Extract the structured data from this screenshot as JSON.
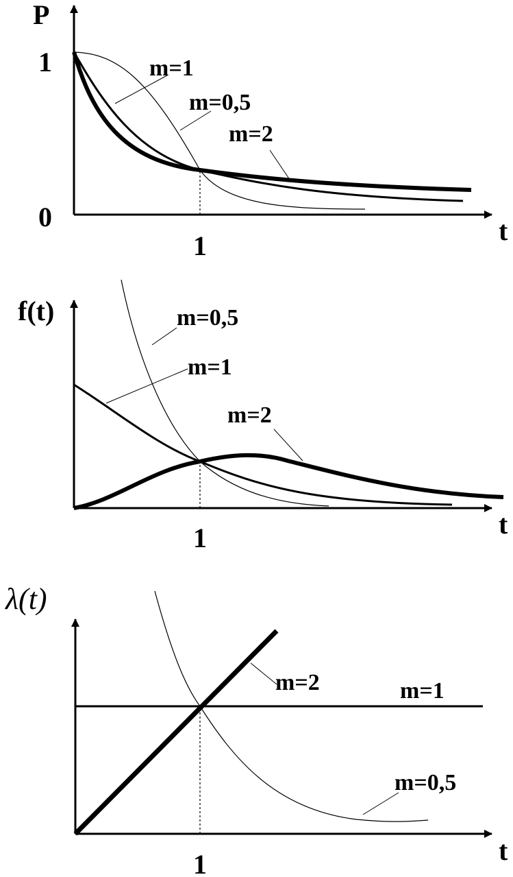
{
  "chart_data": [
    {
      "type": "line",
      "title": "",
      "ylabel": "P",
      "xlabel": "t",
      "xlim": [
        0,
        3.3
      ],
      "ylim": [
        0,
        1
      ],
      "x_ticks": [
        "1"
      ],
      "y_ticks": [
        "0",
        "1"
      ],
      "grid": false,
      "series": [
        {
          "name": "m=1",
          "line_weight": "medium",
          "x": [
            0,
            0.25,
            0.5,
            0.75,
            1,
            1.5,
            2,
            2.5,
            3
          ],
          "y": [
            1,
            0.78,
            0.61,
            0.47,
            0.37,
            0.22,
            0.14,
            0.08,
            0.05
          ]
        },
        {
          "name": "m=0,5",
          "line_weight": "heavy",
          "x": [
            0,
            0.1,
            0.25,
            0.5,
            0.75,
            1,
            1.5,
            2,
            2.5,
            3.2
          ],
          "y": [
            1,
            0.73,
            0.61,
            0.49,
            0.42,
            0.37,
            0.29,
            0.24,
            0.21,
            0.17
          ]
        },
        {
          "name": "m=2",
          "line_weight": "thin",
          "x": [
            0,
            0.25,
            0.5,
            0.75,
            1,
            1.25,
            1.5,
            2,
            2.3
          ],
          "y": [
            1,
            0.94,
            0.78,
            0.57,
            0.37,
            0.21,
            0.11,
            0.02,
            0.01
          ]
        }
      ]
    },
    {
      "type": "line",
      "title": "",
      "ylabel": "f(t)",
      "xlabel": "t",
      "xlim": [
        0,
        3.3
      ],
      "ylim": [
        0,
        1.6
      ],
      "x_ticks": [
        "1"
      ],
      "y_ticks": [],
      "grid": false,
      "series": [
        {
          "name": "m=0,5",
          "line_weight": "thin",
          "x": [
            0.4,
            0.5,
            0.6,
            0.75,
            1,
            1.25,
            1.5,
            2,
            2.5
          ],
          "y": [
            1.6,
            1.39,
            1.17,
            0.85,
            0.37,
            0.22,
            0.14,
            0.05,
            0.03
          ]
        },
        {
          "name": "m=1",
          "line_weight": "medium",
          "x": [
            0,
            0.25,
            0.5,
            0.75,
            1,
            1.5,
            2,
            2.5,
            3
          ],
          "y": [
            0.97,
            0.78,
            0.61,
            0.47,
            0.37,
            0.22,
            0.14,
            0.08,
            0.05
          ]
        },
        {
          "name": "m=2",
          "line_weight": "heavy",
          "x": [
            0,
            0.25,
            0.5,
            0.75,
            1,
            1.25,
            1.5,
            2,
            2.5,
            3,
            3.4
          ],
          "y": [
            0.02,
            0.1,
            0.23,
            0.31,
            0.37,
            0.38,
            0.35,
            0.28,
            0.2,
            0.12,
            0.08
          ]
        }
      ]
    },
    {
      "type": "line",
      "title": "",
      "ylabel": "λ(t)",
      "xlabel": "t",
      "xlim": [
        0,
        3.3
      ],
      "ylim": [
        0,
        2
      ],
      "x_ticks": [
        "1"
      ],
      "y_ticks": [],
      "grid": false,
      "series": [
        {
          "name": "m=2",
          "line_weight": "heavy",
          "x": [
            0,
            1.6
          ],
          "y": [
            0,
            1.6
          ]
        },
        {
          "name": "m=1",
          "line_weight": "medium",
          "x": [
            0,
            3.3
          ],
          "y": [
            1,
            1
          ]
        },
        {
          "name": "m=0,5",
          "line_weight": "thin",
          "x": [
            0.65,
            0.8,
            1,
            1.2,
            1.5,
            2,
            2.5,
            2.85
          ],
          "y": [
            2.1,
            1.5,
            1,
            0.68,
            0.4,
            0.18,
            0.11,
            0.1
          ]
        }
      ]
    }
  ]
}
